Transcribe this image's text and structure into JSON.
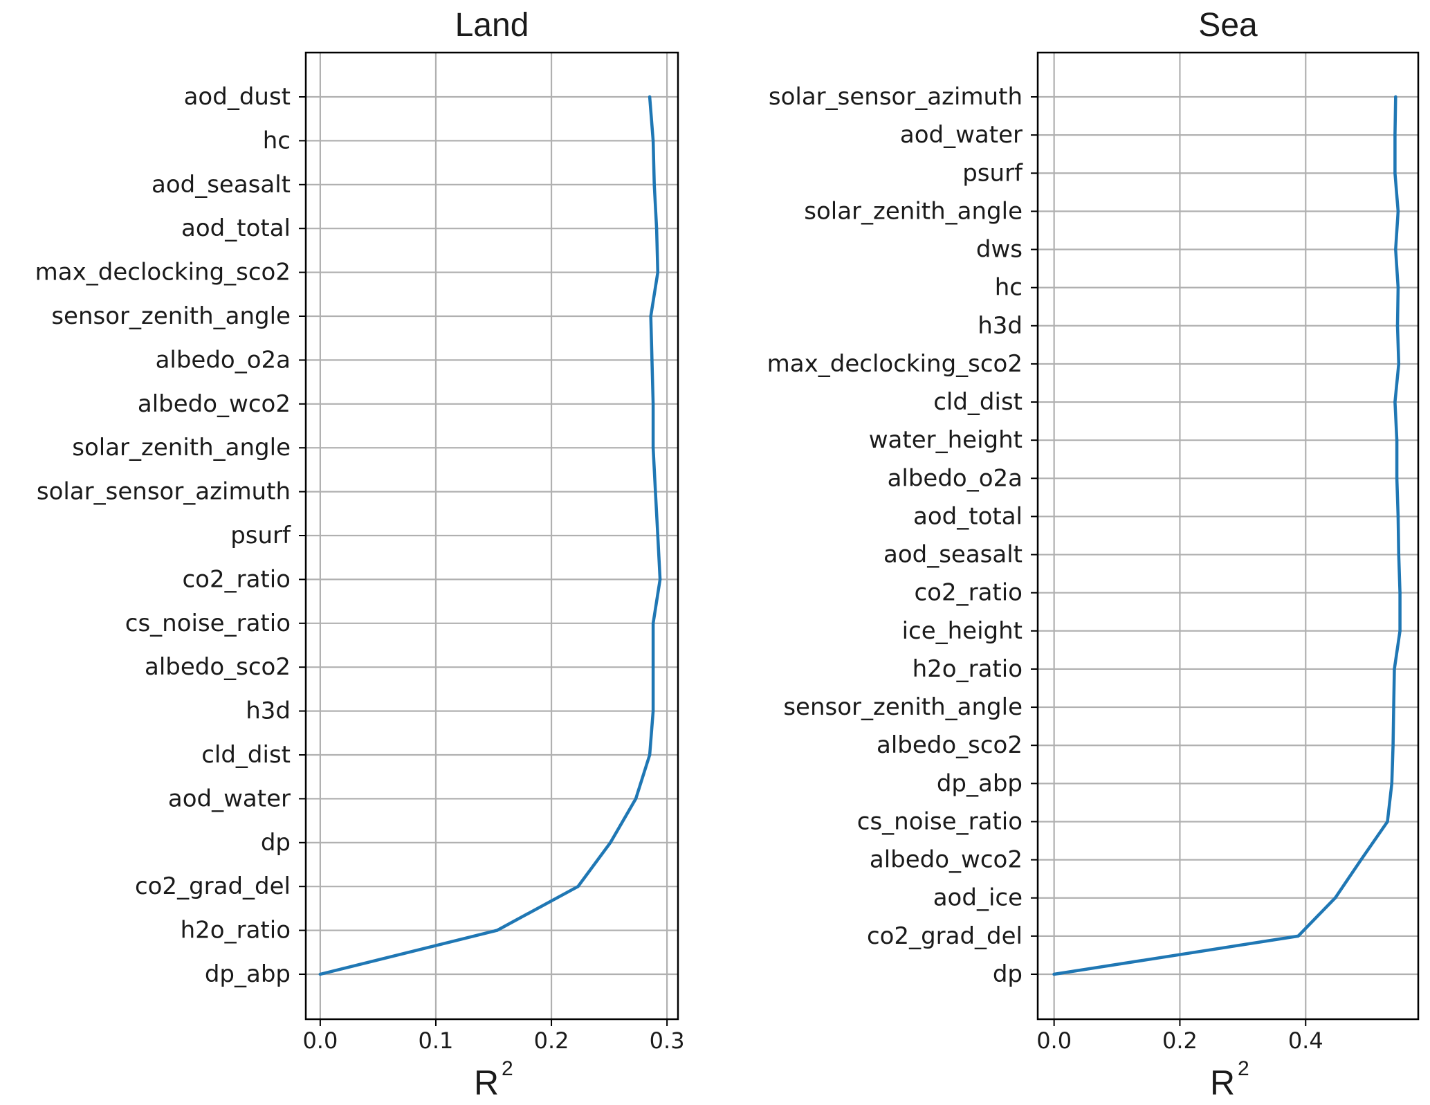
{
  "colors": {
    "series": "#1f77b4"
  },
  "chart_data": [
    {
      "type": "line",
      "orientation": "horizontal",
      "title": "Land",
      "xlabel": "R",
      "xlabel_superscript": "2",
      "ylabel": "",
      "xlim": [
        -0.0125,
        0.3095
      ],
      "x_ticks": [
        0.0,
        0.1,
        0.2,
        0.3
      ],
      "x_tick_labels": [
        "0.0",
        "0.1",
        "0.2",
        "0.3"
      ],
      "grid": true,
      "categories": [
        "aod_dust",
        "hc",
        "aod_seasalt",
        "aod_total",
        "max_declocking_sco2",
        "sensor_zenith_angle",
        "albedo_o2a",
        "albedo_wco2",
        "solar_zenith_angle",
        "solar_sensor_azimuth",
        "psurf",
        "co2_ratio",
        "cs_noise_ratio",
        "albedo_sco2",
        "h3d",
        "cld_dist",
        "aod_water",
        "dp",
        "co2_grad_del",
        "h2o_ratio",
        "dp_abp"
      ],
      "values": [
        0.285,
        0.288,
        0.289,
        0.291,
        0.292,
        0.286,
        0.287,
        0.288,
        0.288,
        0.29,
        0.292,
        0.294,
        0.288,
        0.288,
        0.288,
        0.285,
        0.273,
        0.251,
        0.223,
        0.153,
        0.0
      ]
    },
    {
      "type": "line",
      "orientation": "horizontal",
      "title": "Sea",
      "xlabel": "R",
      "xlabel_superscript": "2",
      "ylabel": "",
      "xlim": [
        -0.026,
        0.579
      ],
      "x_ticks": [
        0.0,
        0.2,
        0.4
      ],
      "x_tick_labels": [
        "0.0",
        "0.2",
        "0.4"
      ],
      "grid": true,
      "categories": [
        "solar_sensor_azimuth",
        "aod_water",
        "psurf",
        "solar_zenith_angle",
        "dws",
        "hc",
        "h3d",
        "max_declocking_sco2",
        "cld_dist",
        "water_height",
        "albedo_o2a",
        "aod_total",
        "aod_seasalt",
        "co2_ratio",
        "ice_height",
        "h2o_ratio",
        "sensor_zenith_angle",
        "albedo_sco2",
        "dp_abp",
        "cs_noise_ratio",
        "albedo_wco2",
        "aod_ice",
        "co2_grad_del",
        "dp"
      ],
      "values": [
        0.543,
        0.542,
        0.542,
        0.547,
        0.543,
        0.547,
        0.546,
        0.548,
        0.542,
        0.545,
        0.545,
        0.547,
        0.548,
        0.55,
        0.55,
        0.541,
        0.54,
        0.539,
        0.537,
        0.53,
        0.488,
        0.447,
        0.388,
        0.0
      ]
    }
  ]
}
